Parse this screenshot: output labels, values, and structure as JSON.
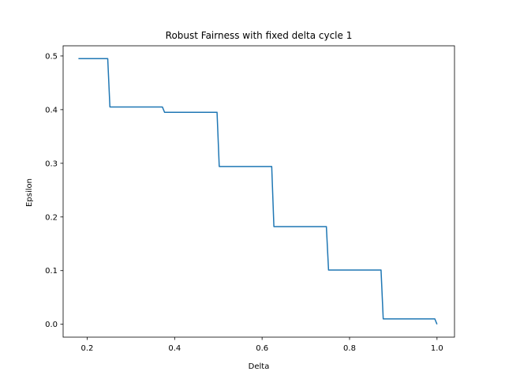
{
  "chart_data": {
    "type": "line",
    "title": "Robust Fairness with fixed delta cycle 1",
    "xlabel": "Delta",
    "ylabel": "Epsilon",
    "xlim": [
      0.145,
      1.04
    ],
    "ylim": [
      -0.024,
      0.519
    ],
    "xticks": [
      0.2,
      0.4,
      0.6,
      0.8,
      1.0
    ],
    "xtick_labels": [
      "0.2",
      "0.4",
      "0.6",
      "0.8",
      "1.0"
    ],
    "yticks": [
      0.0,
      0.1,
      0.2,
      0.3,
      0.4,
      0.5
    ],
    "ytick_labels": [
      "0.0",
      "0.1",
      "0.2",
      "0.3",
      "0.4",
      "0.5"
    ],
    "grid": false,
    "color": "#1f77b4",
    "series": [
      {
        "x": [
          0.18,
          0.247,
          0.252,
          0.372,
          0.377,
          0.497,
          0.502,
          0.622,
          0.627,
          0.747,
          0.752,
          0.872,
          0.877,
          0.995,
          1.0
        ],
        "y": [
          0.495,
          0.495,
          0.405,
          0.405,
          0.395,
          0.395,
          0.294,
          0.294,
          0.182,
          0.182,
          0.101,
          0.101,
          0.01,
          0.01,
          0.0
        ]
      }
    ]
  }
}
